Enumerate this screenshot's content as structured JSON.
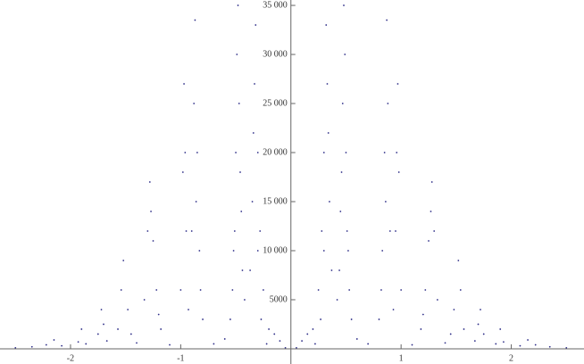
{
  "chart_data": {
    "type": "scatter",
    "color": "#2e2e88",
    "xlim": [
      -2.64,
      2.66
    ],
    "ylim": [
      -1550,
      35550
    ],
    "xticks": [
      -2,
      -1,
      1,
      2
    ],
    "yticks": [
      5000,
      {
        "value": 10000,
        "label": "10 000"
      },
      {
        "value": 15000,
        "label": "15 000"
      },
      {
        "value": 20000,
        "label": "20 000"
      },
      {
        "value": 25000,
        "label": "25 000"
      },
      {
        "value": 30000,
        "label": "30 000"
      },
      {
        "value": 35000,
        "label": "35 000"
      }
    ],
    "x": [
      0.2,
      0.25,
      0.28,
      0.3,
      0.32,
      0.33,
      0.35,
      0.37,
      0.22,
      0.3,
      0.27,
      0.34,
      0.42,
      0.45,
      0.47,
      0.48,
      0.49,
      0.5,
      0.52,
      0.55,
      0.46,
      0.51,
      0.44,
      0.53,
      0.8,
      0.83,
      0.85,
      0.87,
      0.88,
      0.9,
      0.86,
      0.82,
      0.93,
      0.95,
      0.97,
      0.98,
      1.0,
      0.96,
      1.18,
      1.22,
      1.25,
      1.28,
      1.3,
      1.33,
      1.27,
      1.2,
      1.45,
      1.48,
      1.52,
      1.54,
      1.57,
      1.67,
      1.7,
      1.72,
      1.75,
      1.86,
      1.9,
      1.93,
      2.08,
      2.15,
      2.22,
      2.35,
      2.5,
      0.05,
      0.1,
      0.15,
      0.6,
      0.7,
      1.1,
      1.4,
      -0.2,
      -0.25,
      -0.28,
      -0.3,
      -0.32,
      -0.33,
      -0.35,
      -0.37,
      -0.22,
      -0.3,
      -0.27,
      -0.34,
      -0.42,
      -0.45,
      -0.47,
      -0.48,
      -0.49,
      -0.5,
      -0.52,
      -0.55,
      -0.46,
      -0.51,
      -0.44,
      -0.53,
      -0.8,
      -0.83,
      -0.85,
      -0.87,
      -0.88,
      -0.9,
      -0.86,
      -0.82,
      -0.93,
      -0.95,
      -0.97,
      -0.98,
      -1.0,
      -0.96,
      -1.18,
      -1.22,
      -1.25,
      -1.28,
      -1.3,
      -1.33,
      -1.27,
      -1.2,
      -1.45,
      -1.48,
      -1.52,
      -1.54,
      -1.57,
      -1.67,
      -1.7,
      -1.72,
      -1.75,
      -1.86,
      -1.9,
      -1.93,
      -2.08,
      -2.15,
      -2.22,
      -2.35,
      -2.5,
      -0.05,
      -0.1,
      -0.15,
      -0.6,
      -0.7,
      -1.1,
      -1.4
    ],
    "values": [
      2000,
      6000,
      12000,
      20000,
      33000,
      27000,
      15000,
      8000,
      500,
      10000,
      3000,
      22000,
      5000,
      14000,
      25000,
      35000,
      30000,
      20000,
      10000,
      3000,
      18000,
      12000,
      8000,
      6000,
      3000,
      10000,
      20000,
      33500,
      25000,
      12000,
      15000,
      6000,
      4000,
      12000,
      27000,
      18000,
      6000,
      20000,
      2000,
      6000,
      11000,
      17000,
      12000,
      5000,
      14000,
      3500,
      1500,
      4000,
      9000,
      6000,
      2000,
      800,
      2500,
      4000,
      1500,
      500,
      2000,
      700,
      300,
      900,
      400,
      200,
      100,
      100,
      800,
      1500,
      1000,
      500,
      400,
      600,
      2000,
      6000,
      12000,
      20000,
      33000,
      27000,
      15000,
      8000,
      500,
      10000,
      3000,
      22000,
      5000,
      14000,
      25000,
      35000,
      30000,
      20000,
      10000,
      3000,
      18000,
      12000,
      8000,
      6000,
      3000,
      10000,
      20000,
      33500,
      25000,
      12000,
      15000,
      6000,
      4000,
      12000,
      27000,
      18000,
      6000,
      20000,
      2000,
      6000,
      11000,
      17000,
      12000,
      5000,
      14000,
      3500,
      1500,
      4000,
      9000,
      6000,
      2000,
      800,
      2500,
      4000,
      1500,
      500,
      2000,
      700,
      300,
      900,
      400,
      200,
      100,
      100,
      800,
      1500,
      1000,
      500,
      400,
      600
    ]
  }
}
